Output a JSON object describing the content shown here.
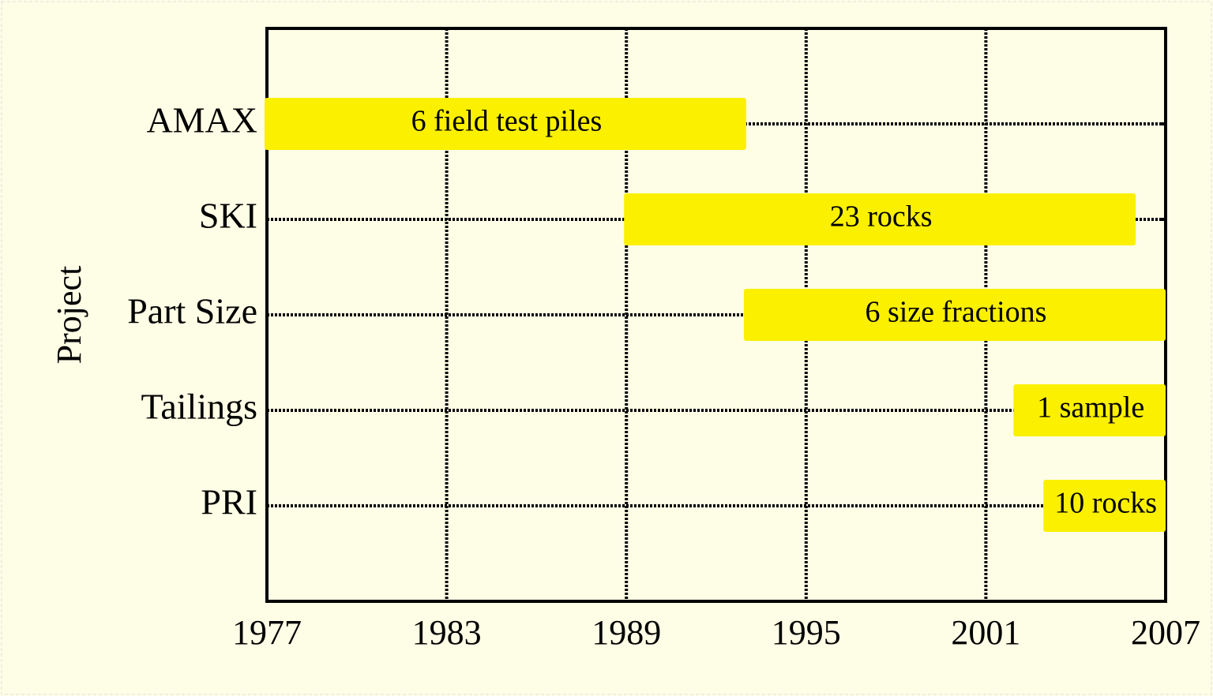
{
  "chart_data": {
    "type": "gantt",
    "y_label": "Project",
    "tasks": [
      {
        "name": "AMAX",
        "start": 1977,
        "end": 1993,
        "label": "6 field test piles"
      },
      {
        "name": "SKI",
        "start": 1989,
        "end": 2006,
        "label": "23 rocks"
      },
      {
        "name": "Part Size",
        "start": 1993,
        "end": 2007,
        "label": "6 size fractions"
      },
      {
        "name": "Tailings",
        "start": 2002,
        "end": 2007,
        "label": "1 sample"
      },
      {
        "name": "PRI",
        "start": 2003,
        "end": 2007,
        "label": "10 rocks"
      }
    ],
    "color": "#fbf000",
    "xlim": [
      1977,
      2007
    ],
    "xticks": [
      1977,
      1983,
      1989,
      1995,
      2001,
      2007
    ],
    "grid": true
  }
}
